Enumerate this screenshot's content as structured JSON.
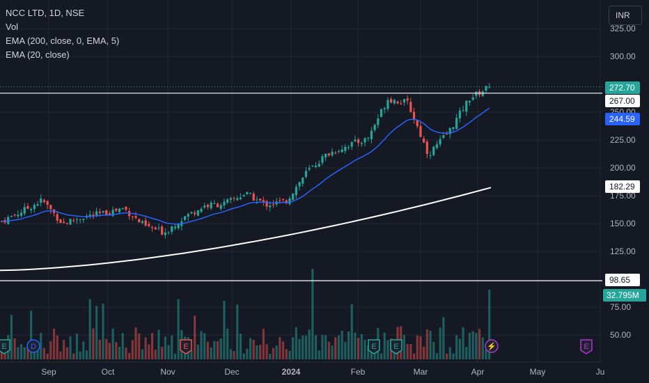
{
  "legend": {
    "title": "NCC LTD, 1D, NSE",
    "vol": "Vol",
    "ema200": "EMA (200, close, 0, EMA, 5)",
    "ema20": "EMA (20, close)"
  },
  "currency": "INR",
  "price_labels": {
    "current": "272.70",
    "resistance": "267.00",
    "ema20": "244.59",
    "ema200": "182.29",
    "support": "98.65",
    "volume": "32.795M"
  },
  "event_markers": [
    {
      "label": "E",
      "x_label": "Aug"
    },
    {
      "label": "D",
      "x_label": "Aug"
    },
    {
      "label": "E",
      "x_label": "Nov"
    },
    {
      "label": "E",
      "x_label": "Feb"
    },
    {
      "label": "E",
      "x_label": "Mar"
    },
    {
      "label": "⚡",
      "x_label": "Apr"
    },
    {
      "label": "E",
      "x_label": "May"
    }
  ],
  "colors": {
    "background": "#151924",
    "up": "#26a69a",
    "down": "#ef5350",
    "ema20": "#2962ff",
    "ema200": "#ffffff",
    "grid": "#232733",
    "axis_text": "#b2b5be"
  },
  "chart_data": {
    "type": "candlestick",
    "y_ticks": [
      "325.00",
      "300.00",
      "250.00",
      "225.00",
      "200.00",
      "175.00",
      "150.00",
      "125.00",
      "75.00",
      "50.00"
    ],
    "y_tick_values": [
      325,
      300,
      250,
      225,
      200,
      175,
      150,
      125,
      75,
      50
    ],
    "x_ticks": [
      "Sep",
      "Oct",
      "Nov",
      "Dec",
      "2024",
      "Feb",
      "Mar",
      "Apr",
      "May",
      "Ju"
    ],
    "ylim": [
      35,
      335
    ],
    "horizontal_lines": [
      267.0,
      98.65
    ],
    "close_points": [
      {
        "date": "Aug",
        "close": 152
      },
      {
        "date": "Aug-end",
        "close": 161
      },
      {
        "date": "Sep-start",
        "close": 171
      },
      {
        "date": "Sep",
        "close": 150
      },
      {
        "date": "Sep-end",
        "close": 156
      },
      {
        "date": "Oct",
        "close": 159
      },
      {
        "date": "Oct-mid",
        "close": 164
      },
      {
        "date": "Oct-end",
        "close": 148
      },
      {
        "date": "Nov",
        "close": 142
      },
      {
        "date": "Nov-mid",
        "close": 156
      },
      {
        "date": "Nov-end",
        "close": 166
      },
      {
        "date": "Dec",
        "close": 168
      },
      {
        "date": "Dec-mid",
        "close": 177
      },
      {
        "date": "Dec-end",
        "close": 167
      },
      {
        "date": "2024",
        "close": 170
      },
      {
        "date": "Jan-mid",
        "close": 196
      },
      {
        "date": "Jan-end",
        "close": 212
      },
      {
        "date": "Feb",
        "close": 220
      },
      {
        "date": "Feb-mid",
        "close": 226
      },
      {
        "date": "Feb-end",
        "close": 262
      },
      {
        "date": "Mar",
        "close": 258
      },
      {
        "date": "Mar-mid",
        "close": 212
      },
      {
        "date": "Mar-end",
        "close": 232
      },
      {
        "date": "Apr",
        "close": 262
      },
      {
        "date": "Apr-latest",
        "close": 272.7
      }
    ],
    "series": [
      {
        "name": "EMA (20, close)",
        "last": 244.59
      },
      {
        "name": "EMA (200, close, 0, EMA, 5)",
        "last": 182.29
      }
    ],
    "volume_last": "32.795M"
  }
}
